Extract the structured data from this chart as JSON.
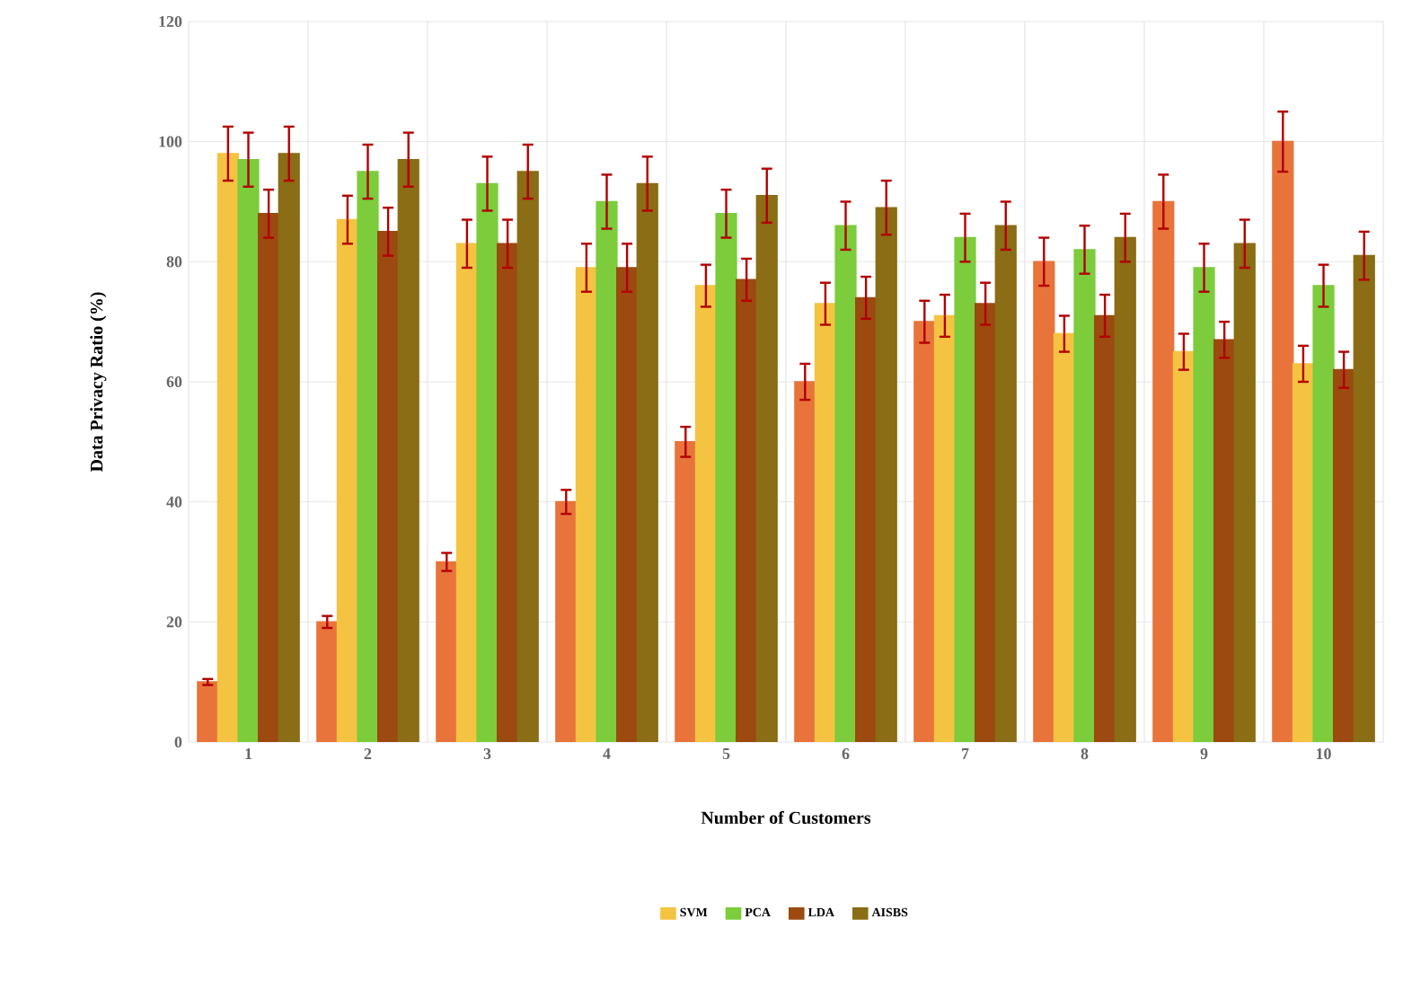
{
  "chart_data": {
    "type": "bar",
    "xlabel": "Number of Customers",
    "ylabel": "Data Privacy Ratio (%)",
    "categories": [
      "1",
      "2",
      "3",
      "4",
      "5",
      "6",
      "7",
      "8",
      "9",
      "10"
    ],
    "series": [
      {
        "color": "#e8743b",
        "values": [
          10,
          20,
          30,
          40,
          50,
          60,
          70,
          80,
          90,
          100
        ],
        "errors": [
          0.5,
          1,
          1.5,
          2,
          2.5,
          3,
          3.5,
          4,
          4.5,
          5
        ]
      },
      {
        "name": "SVM",
        "color": "#f5c342",
        "values": [
          98,
          87,
          83,
          79,
          76,
          73,
          71,
          68,
          65,
          63
        ],
        "errors": [
          4.5,
          4,
          4,
          4,
          3.5,
          3.5,
          3.5,
          3,
          3,
          3
        ]
      },
      {
        "name": "PCA",
        "color": "#7ccc3c",
        "values": [
          97,
          95,
          93,
          90,
          88,
          86,
          84,
          82,
          79,
          76
        ],
        "errors": [
          4.5,
          4.5,
          4.5,
          4.5,
          4,
          4,
          4,
          4,
          4,
          3.5
        ]
      },
      {
        "name": "LDA",
        "color": "#9c4a10",
        "values": [
          88,
          85,
          83,
          79,
          77,
          74,
          73,
          71,
          67,
          62
        ],
        "errors": [
          4,
          4,
          4,
          4,
          3.5,
          3.5,
          3.5,
          3.5,
          3,
          3
        ]
      },
      {
        "name": "AISBS",
        "color": "#8a6d14",
        "values": [
          98,
          97,
          95,
          93,
          91,
          89,
          86,
          84,
          83,
          81
        ],
        "errors": [
          4.5,
          4.5,
          4.5,
          4.5,
          4.5,
          4.5,
          4,
          4,
          4,
          4
        ]
      }
    ],
    "ylim": [
      0,
      120
    ],
    "yticks": [
      0,
      20,
      40,
      60,
      80,
      100,
      120
    ],
    "grid": true,
    "legend": "bottom"
  }
}
